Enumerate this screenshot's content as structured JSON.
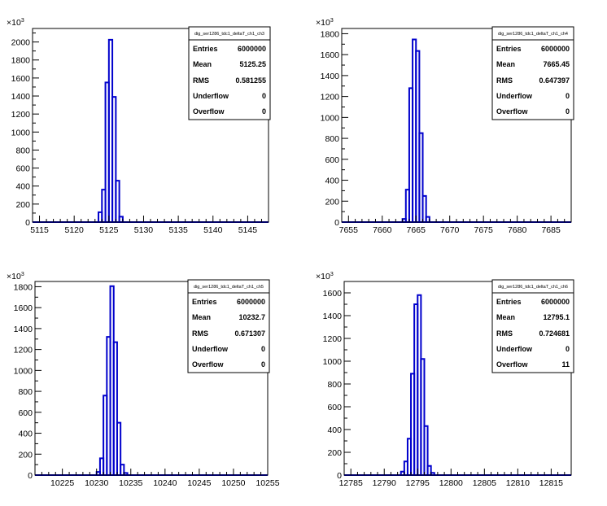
{
  "stats_labels": {
    "entries": "Entries",
    "mean": "Mean",
    "rms": "RMS",
    "underflow": "Underflow",
    "overflow": "Overflow"
  },
  "chart_data": [
    {
      "type": "bar",
      "title": "dig_ser1286_tdc1_deltaT_ch1_ch3",
      "xlim": [
        5114,
        5148
      ],
      "ylim": [
        0,
        2150
      ],
      "y_multiplier": "10^3",
      "x_ticks": [
        5115,
        5120,
        5125,
        5130,
        5135,
        5140,
        5145
      ],
      "y_ticks": [
        0,
        200,
        400,
        600,
        800,
        1000,
        1200,
        1400,
        1600,
        1800,
        2000
      ],
      "bin_width": 0.5,
      "bins": [
        {
          "x": 5123.5,
          "y": 110
        },
        {
          "x": 5124.0,
          "y": 360
        },
        {
          "x": 5124.5,
          "y": 1550
        },
        {
          "x": 5125.0,
          "y": 2025
        },
        {
          "x": 5125.5,
          "y": 1390
        },
        {
          "x": 5126.0,
          "y": 460
        },
        {
          "x": 5126.5,
          "y": 60
        }
      ],
      "stats": {
        "entries": "6000000",
        "mean": "5125.25",
        "rms": "0.581255",
        "underflow": "0",
        "overflow": "0"
      }
    },
    {
      "type": "bar",
      "title": "dig_ser1286_tdc1_deltaT_ch1_ch4",
      "xlim": [
        7654,
        7688
      ],
      "ylim": [
        0,
        1850
      ],
      "y_multiplier": "10^3",
      "x_ticks": [
        7655,
        7660,
        7665,
        7670,
        7675,
        7680,
        7685
      ],
      "y_ticks": [
        0,
        200,
        400,
        600,
        800,
        1000,
        1200,
        1400,
        1600,
        1800
      ],
      "bin_width": 0.5,
      "bins": [
        {
          "x": 7663.0,
          "y": 30
        },
        {
          "x": 7663.5,
          "y": 310
        },
        {
          "x": 7664.0,
          "y": 1280
        },
        {
          "x": 7664.5,
          "y": 1745
        },
        {
          "x": 7665.0,
          "y": 1635
        },
        {
          "x": 7665.5,
          "y": 850
        },
        {
          "x": 7666.0,
          "y": 250
        },
        {
          "x": 7666.5,
          "y": 50
        }
      ],
      "stats": {
        "entries": "6000000",
        "mean": "7665.45",
        "rms": "0.647397",
        "underflow": "0",
        "overflow": "0"
      }
    },
    {
      "type": "bar",
      "title": "dig_ser1286_tdc1_deltaT_ch1_ch5",
      "xlim": [
        10221,
        10255
      ],
      "ylim": [
        0,
        1850
      ],
      "y_multiplier": "10^3",
      "x_ticks": [
        10225,
        10230,
        10235,
        10240,
        10245,
        10250,
        10255
      ],
      "y_ticks": [
        0,
        200,
        400,
        600,
        800,
        1000,
        1200,
        1400,
        1600,
        1800
      ],
      "bin_width": 0.5,
      "bins": [
        {
          "x": 10230.0,
          "y": 30
        },
        {
          "x": 10230.5,
          "y": 160
        },
        {
          "x": 10231.0,
          "y": 760
        },
        {
          "x": 10231.5,
          "y": 1320
        },
        {
          "x": 10232.0,
          "y": 1805
        },
        {
          "x": 10232.5,
          "y": 1270
        },
        {
          "x": 10233.0,
          "y": 500
        },
        {
          "x": 10233.5,
          "y": 100
        },
        {
          "x": 10234.0,
          "y": 20
        }
      ],
      "stats": {
        "entries": "6000000",
        "mean": "10232.7",
        "rms": "0.671307",
        "underflow": "0",
        "overflow": "0"
      }
    },
    {
      "type": "bar",
      "title": "dig_ser1286_tdc1_deltaT_ch1_ch6",
      "xlim": [
        12784,
        12818
      ],
      "ylim": [
        0,
        1700
      ],
      "y_multiplier": "10^3",
      "x_ticks": [
        12785,
        12790,
        12795,
        12800,
        12805,
        12810,
        12815
      ],
      "y_ticks": [
        0,
        200,
        400,
        600,
        800,
        1000,
        1200,
        1400,
        1600
      ],
      "bin_width": 0.5,
      "bins": [
        {
          "x": 12792.5,
          "y": 30
        },
        {
          "x": 12793.0,
          "y": 120
        },
        {
          "x": 12793.5,
          "y": 320
        },
        {
          "x": 12794.0,
          "y": 890
        },
        {
          "x": 12794.5,
          "y": 1500
        },
        {
          "x": 12795.0,
          "y": 1580
        },
        {
          "x": 12795.5,
          "y": 1020
        },
        {
          "x": 12796.0,
          "y": 430
        },
        {
          "x": 12796.5,
          "y": 80
        },
        {
          "x": 12797.0,
          "y": 20
        }
      ],
      "stats": {
        "entries": "6000000",
        "mean": "12795.1",
        "rms": "0.724681",
        "underflow": "0",
        "overflow": "11"
      }
    }
  ]
}
